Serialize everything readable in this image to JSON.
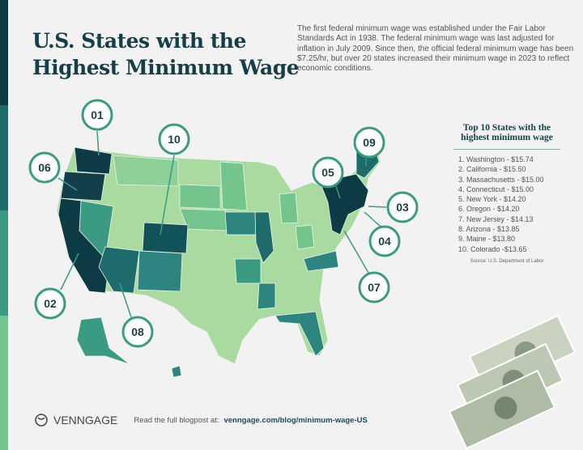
{
  "header": {
    "title_line1": "U.S. States with the",
    "title_line2": "Highest Minimum Wage"
  },
  "intro": "The first federal minimum wage was established under the Fair Labor Standards Act in 1938. The federal minimum wage was last adjusted for inflation in July 2009. Since then, the official federal minimum wage has been $7.25/hr, but over 20 states increased their minimum wage in 2023 to reflect economic conditions.",
  "top10": {
    "title": "Top 10 States with the highest minimum wage",
    "items": [
      "1. Washington - $15.74",
      "2. California - $15.50",
      "3. Massachusetts - $15.00",
      "4. Connecticut - $15.00",
      "5. New York - $14.20",
      "6. Oregon - $14.20",
      "7. New Jersey - $14.13",
      "8. Arizona - $13.85",
      "9. Maine - $13.80",
      "10. Colorado -$13.65"
    ],
    "source": "Source: U.S. Department of Labor"
  },
  "map": {
    "callouts": [
      "01",
      "10",
      "06",
      "02",
      "08",
      "05",
      "09",
      "03",
      "04",
      "07"
    ],
    "colors": {
      "darkest": "#0d3b45",
      "dark": "#1d6b6b",
      "mid": "#3b9b82",
      "light": "#74c48e",
      "lightest": "#a9dba0"
    }
  },
  "footer": {
    "brand": "VENNGAGE",
    "read": "Read the full blogpost at:",
    "link": "venngage.com/blog/minimum-wage-US"
  }
}
